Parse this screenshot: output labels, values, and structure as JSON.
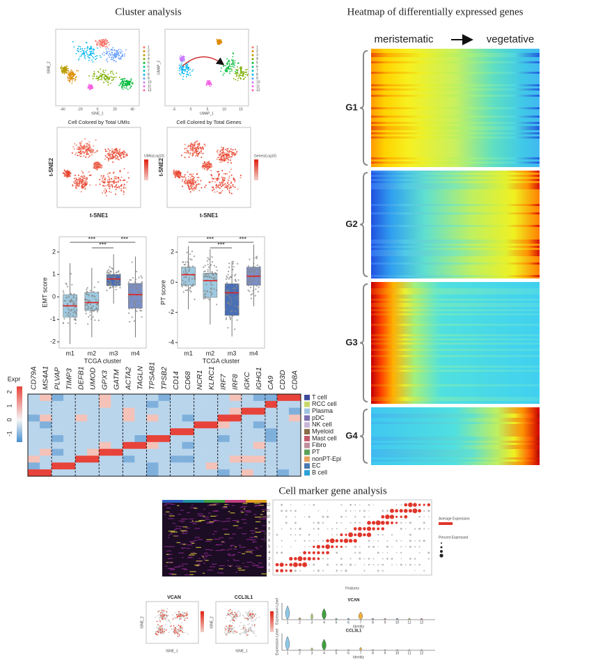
{
  "cluster_analysis": {
    "title": "Cluster analysis",
    "tsne": {
      "x_label": "tSNE_1",
      "y_label": "tSNE_2",
      "xticks": [
        -40,
        -20,
        0,
        20,
        40
      ]
    },
    "umap": {
      "x_label": "UMAP_1",
      "y_label": "UMAP_2",
      "xticks": [
        -5,
        0,
        5,
        10,
        15
      ]
    },
    "legend": [
      "1",
      "2",
      "3",
      "4",
      "5",
      "6",
      "7",
      "8",
      "9",
      "10",
      "11",
      "12"
    ],
    "umis": {
      "title": "Cell Colored by Total UMIs",
      "x_label": "t-SNE1",
      "y_label": "t-SNE2",
      "legend_title": "UMIs(Log10)"
    },
    "genes": {
      "title": "Cell Colored by Total Genes",
      "x_label": "t-SNE1",
      "y_label": "t-SNE2",
      "legend_title": "Genes(Log10)"
    }
  },
  "boxplots": [
    {
      "y_label": "EMT score",
      "x_label": "TCGA cluster",
      "categories": [
        "m1",
        "m2",
        "m3",
        "m4"
      ],
      "ylim": [
        -2.28,
        2.68
      ],
      "yticks": [
        -2,
        -1,
        0,
        1,
        2
      ],
      "boxes": [
        {
          "low": -2.1,
          "q1": -0.9,
          "median": -0.4,
          "q3": 0.1,
          "high": 1.5
        },
        {
          "low": -1.8,
          "q1": -0.6,
          "median": -0.25,
          "q3": 0.2,
          "high": 1.3
        },
        {
          "low": -0.3,
          "q1": 0.5,
          "median": 0.8,
          "q3": 1.0,
          "high": 1.9
        },
        {
          "low": -1.8,
          "q1": -0.5,
          "median": 0.1,
          "q3": 0.6,
          "high": 1.8
        }
      ],
      "colors": [
        "#9ecae1",
        "#9ecae1",
        "#4a6fb5",
        "#7b8fc7"
      ],
      "significance": [
        "***",
        "***",
        "***"
      ]
    },
    {
      "y_label": "PT score",
      "x_label": "TCGA cluster",
      "categories": [
        "m1",
        "m2",
        "m3",
        "m4"
      ],
      "ylim": [
        -4.37,
        3.02
      ],
      "yticks": [
        -4,
        -2,
        0,
        2
      ],
      "boxes": [
        {
          "low": -1.8,
          "q1": -0.2,
          "median": 0.5,
          "q3": 1.0,
          "high": 2.4
        },
        {
          "low": -2.8,
          "q1": -1.0,
          "median": 0.1,
          "q3": 0.6,
          "high": 2.2
        },
        {
          "low": -3.6,
          "q1": -2.2,
          "median": -0.7,
          "q3": -0.1,
          "high": 1.4
        },
        {
          "low": -1.6,
          "q1": -0.2,
          "median": 0.4,
          "q3": 1.0,
          "high": 2.5
        }
      ],
      "colors": [
        "#9ecae1",
        "#9ecae1",
        "#4a6fb5",
        "#7b8fc7"
      ],
      "significance": [
        "***",
        "***",
        "***"
      ]
    }
  ],
  "marker_heatmap": {
    "legend_title": "Expr",
    "legend_ticks": [
      -1,
      0,
      1,
      2
    ],
    "genes": [
      "CD79A",
      "MS4A1",
      "PLVAP",
      "TIMP3",
      "DEFB1",
      "UMOD",
      "GPX3",
      "GATM",
      "ACTA2",
      "TAGLN",
      "TPSAB1",
      "TPSB2",
      "CD14",
      "CD68",
      "NCR1",
      "KLRC1",
      "IRF7",
      "IRF8",
      "IGKC",
      "IGHG1",
      "CA9",
      "CD3D",
      "CD8A"
    ],
    "cell_types": [
      {
        "name": "T cell",
        "color": "#3b4a9a"
      },
      {
        "name": "RCC cell",
        "color": "#c8d86a"
      },
      {
        "name": "Plasma",
        "color": "#9fc3e0"
      },
      {
        "name": "pDC",
        "color": "#7b6fb0"
      },
      {
        "name": "NK cell",
        "color": "#c9b5d9"
      },
      {
        "name": "Myeloid",
        "color": "#8b6d4a"
      },
      {
        "name": "Mast cell",
        "color": "#c25a6a"
      },
      {
        "name": "Fibro",
        "color": "#c08f9d"
      },
      {
        "name": "PT",
        "color": "#5aa05a"
      },
      {
        "name": "nonPT-Epi",
        "color": "#e8a060"
      },
      {
        "name": "EC",
        "color": "#4a78b0"
      },
      {
        "name": "B cell",
        "color": "#2ca0d8"
      }
    ]
  },
  "deg_heatmap": {
    "title": "Heatmap of differentially expressed genes",
    "start_label": "meristematic",
    "end_label": "vegetative",
    "groups": [
      "G1",
      "G2",
      "G3",
      "G4"
    ]
  },
  "cell_marker": {
    "title": "Cell marker gene analysis",
    "dotplot": {
      "x_label": "Features",
      "y_label": "Identity",
      "legend_titles": [
        "Average Expression",
        "Percent Expressed"
      ]
    },
    "feature_plots": [
      {
        "title": "VCAN",
        "x_label": "tSNE_1",
        "y_label": "tSNE_2"
      },
      {
        "title": "CCL3L1",
        "x_label": "tSNE_1",
        "y_label": "tSNE_2"
      }
    ],
    "violins": [
      {
        "title": "VCAN",
        "y_label": "Expression Level",
        "x_label": "Identity"
      },
      {
        "title": "CCL3L1",
        "y_label": "Expression Level",
        "x_label": "Identity"
      }
    ],
    "identities": [
      "1",
      "2",
      "3",
      "4",
      "5",
      "6",
      "7",
      "8",
      "9",
      "10",
      "11",
      "12"
    ]
  }
}
